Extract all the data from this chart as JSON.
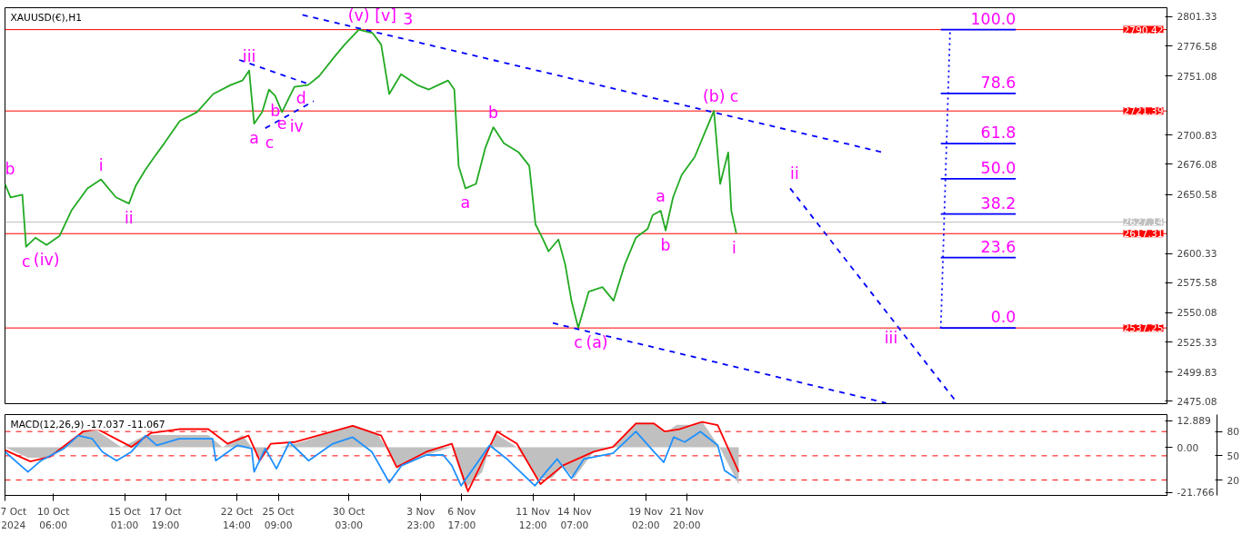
{
  "chart_data": [
    {
      "type": "line",
      "title": "XAUUSD(€),H1",
      "tick_labels": "y",
      "xlim": [
        "2024-10-07T00:00",
        "2024-12-24T03:00"
      ],
      "ylim": [
        2473,
        2809
      ],
      "yticks": [
        2801.33,
        2776.58,
        2751.08,
        2700.83,
        2676.08,
        2650.58,
        2600.33,
        2575.58,
        2550.08,
        2525.33,
        2499.83,
        2475.08
      ],
      "series": [
        {
          "color": "#22aa22",
          "x": [
            "2024-10-07T00:00",
            "2024-10-07T09:00",
            "2024-10-08T04:00",
            "2024-10-08T10:00",
            "2024-10-09T01:00",
            "2024-10-09T19:00",
            "2024-10-10T16:00",
            "2024-10-11T11:00",
            "2024-10-12T13:00",
            "2024-10-13T11:00",
            "2024-10-14T11:00",
            "2024-10-15T08:00",
            "2024-10-15T19:00",
            "2024-10-16T10:00",
            "2024-10-17T01:00",
            "2024-10-17T17:00",
            "2024-10-18T18:00",
            "2024-10-19T22:00",
            "2024-10-21T00:00",
            "2024-10-22T04:00",
            "2024-10-22T23:00",
            "2024-10-23T10:00",
            "2024-10-23T18:00",
            "2024-10-24T07:00",
            "2024-10-24T18:00",
            "2024-10-25T04:00",
            "2024-10-25T15:00",
            "2024-10-26T11:00",
            "2024-10-27T09:00",
            "2024-10-28T03:00",
            "2024-10-29T02:00",
            "2024-10-29T20:00",
            "2024-10-30T19:00",
            "2024-10-31T17:00",
            "2024-11-01T07:00",
            "2024-11-01T20:00",
            "2024-11-02T15:00",
            "2024-11-03T17:00",
            "2024-11-04T12:00",
            "2024-11-05T03:00",
            "2024-11-05T19:00",
            "2024-11-06T05:00",
            "2024-11-06T12:00",
            "2024-11-06T23:00",
            "2024-11-07T16:00",
            "2024-11-08T07:00",
            "2024-11-08T20:00",
            "2024-11-09T13:00",
            "2024-11-10T13:00",
            "2024-11-11T06:00",
            "2024-11-11T16:00",
            "2024-11-12T03:00",
            "2024-11-12T13:00",
            "2024-11-13T05:00",
            "2024-11-13T16:00",
            "2024-11-14T02:00",
            "2024-11-14T13:00",
            "2024-11-15T06:00",
            "2024-11-16T04:00",
            "2024-11-16T22:00",
            "2024-11-17T16:00",
            "2024-11-18T10:00",
            "2024-11-19T05:00",
            "2024-11-19T13:00",
            "2024-11-20T02:00",
            "2024-11-20T10:00",
            "2024-11-20T22:00",
            "2024-11-21T12:00",
            "2024-11-22T09:00",
            "2024-11-23T03:00",
            "2024-11-23T16:00",
            "2024-11-24T02:00",
            "2024-11-24T15:00",
            "2024-11-24T20:00",
            "2024-11-25T04:00"
          ],
          "values": [
            2659.5,
            2648.1,
            2650.4,
            2606.2,
            2613.8,
            2607.7,
            2615.3,
            2636.7,
            2655.7,
            2663.3,
            2648.1,
            2642.8,
            2658.0,
            2671.0,
            2682.4,
            2693.9,
            2712.9,
            2720.5,
            2735.8,
            2743.4,
            2747.2,
            2755.6,
            2710.6,
            2720.5,
            2739.6,
            2734.2,
            2720.5,
            2741.9,
            2743.4,
            2751.0,
            2766.3,
            2777.7,
            2790.4,
            2787.6,
            2777.7,
            2735.8,
            2752.5,
            2743.4,
            2739.6,
            2743.4,
            2747.2,
            2739.6,
            2674.8,
            2655.7,
            2659.5,
            2690.0,
            2707.6,
            2693.9,
            2686.2,
            2674.8,
            2625.2,
            2613.8,
            2602.3,
            2612.3,
            2591.0,
            2560.4,
            2537.3,
            2568.1,
            2571.9,
            2560.4,
            2591.0,
            2613.8,
            2621.4,
            2632.9,
            2636.7,
            2620.0,
            2648.1,
            2667.2,
            2682.4,
            2705.3,
            2721.4,
            2659.5,
            2686.2,
            2636.7,
            2617.6
          ]
        },
        {
          "color": "#0000ff",
          "line_style": "dashed",
          "x": [
            "2024-10-27T00:00",
            "2024-12-05T01:00"
          ],
          "values": [
            2802.9,
            2686.2
          ]
        },
        {
          "color": "#0000ff",
          "line_style": "dashed",
          "x": [
            "2024-11-12T20:00",
            "2024-12-05T06:00"
          ],
          "values": [
            2541.4,
            2473.5
          ]
        },
        {
          "color": "#0000ff",
          "line_style": "dashed",
          "x": [
            "2024-11-28T19:00",
            "2024-12-09T20:00"
          ],
          "values": [
            2655.7,
            2476.6
          ]
        },
        {
          "color": "#0000ff",
          "line_style": "dashed",
          "x": [
            "2024-10-22T18:00",
            "2024-10-27T06:00"
          ],
          "values": [
            2764.7,
            2744.9
          ]
        },
        {
          "color": "#0000ff",
          "line_style": "dashed",
          "x": [
            "2024-10-24T12:00",
            "2024-10-27T18:00"
          ],
          "values": [
            2706.8,
            2729.7
          ]
        },
        {
          "color": "#0000ff",
          "line_style": "dotted",
          "x": [
            "2024-12-08T22:00",
            "2024-12-09T13:00"
          ],
          "values": [
            2537,
            2790
          ]
        },
        {
          "color": "#0000ff",
          "x": [
            "2024-12-08T22:00",
            "2024-12-13T23:00"
          ],
          "values": [
            2790.42,
            2790.42
          ]
        },
        {
          "color": "#0000ff",
          "x": [
            "2024-12-08T22:00",
            "2024-12-13T23:00"
          ],
          "values": [
            2736.2,
            2736.2
          ]
        },
        {
          "color": "#0000ff",
          "x": [
            "2024-12-08T22:00",
            "2024-12-13T23:00"
          ],
          "values": [
            2693.7,
            2693.7
          ]
        },
        {
          "color": "#0000ff",
          "x": [
            "2024-12-08T22:00",
            "2024-12-13T23:00"
          ],
          "values": [
            2663.8,
            2663.8
          ]
        },
        {
          "color": "#0000ff",
          "x": [
            "2024-12-08T22:00",
            "2024-12-13T23:00"
          ],
          "values": [
            2634.0,
            2634.0
          ]
        },
        {
          "color": "#0000ff",
          "x": [
            "2024-12-08T22:00",
            "2024-12-13T23:00"
          ],
          "values": [
            2597.0,
            2597.0
          ]
        },
        {
          "color": "#0000ff",
          "x": [
            "2024-12-08T22:00",
            "2024-12-13T23:00"
          ],
          "values": [
            2537.25,
            2537.25
          ]
        }
      ],
      "ref_lines": [
        {
          "axis": "y",
          "value": 2790.42,
          "label": "2790.42",
          "color": "#ff0000"
        },
        {
          "axis": "y",
          "value": 2721.39,
          "label": "2721.39",
          "color": "#ff0000"
        },
        {
          "axis": "y",
          "value": 2627.14,
          "label": "2627.14",
          "color": "#c0c0c0"
        },
        {
          "axis": "y",
          "value": 2617.31,
          "label": "2617.31",
          "color": "#ff0000"
        },
        {
          "axis": "y",
          "value": 2537.25,
          "label": "2537.25",
          "color": "#ff0000"
        }
      ],
      "annotations": [
        {
          "text": "b",
          "x": "2024-10-07T00:00",
          "y": 2659.5
        },
        {
          "text": "c",
          "x": "2024-10-08T10:00",
          "y": 2606.2
        },
        {
          "text": "(iv)",
          "x": "2024-10-09T19:00",
          "y": 2607.7
        },
        {
          "text": "i",
          "x": "2024-10-13T11:00",
          "y": 2663.3
        },
        {
          "text": "ii",
          "x": "2024-10-15T08:00",
          "y": 2642.8
        },
        {
          "text": "iii",
          "x": "2024-10-23T10:00",
          "y": 2755.6
        },
        {
          "text": "a",
          "x": "2024-10-23T18:00",
          "y": 2710.6
        },
        {
          "text": "b",
          "x": "2024-10-25T04:00",
          "y": 2734.2
        },
        {
          "text": "d",
          "x": "2024-10-27T06:00",
          "y": 2744.9
        },
        {
          "text": "c",
          "x": "2024-10-24T12:00",
          "y": 2706.8
        },
        {
          "text": "e",
          "x": "2024-10-25T15:00",
          "y": 2720.5
        },
        {
          "text": "iv",
          "x": "2024-10-25T15:00",
          "y": 2720.5
        },
        {
          "text": "(v)",
          "x": "2024-10-30T19:00",
          "y": 2790.4
        },
        {
          "text": "[v]",
          "x": "2024-10-30T19:00",
          "y": 2790.4
        },
        {
          "text": "3",
          "x": "2024-10-30T19:00",
          "y": 2790.4
        },
        {
          "text": "b",
          "x": "2024-11-08T20:00",
          "y": 2707.6
        },
        {
          "text": "a",
          "x": "2024-11-06T23:00",
          "y": 2655.7
        },
        {
          "text": "c",
          "x": "2024-11-14T13:00",
          "y": 2537.3
        },
        {
          "text": "(a)",
          "x": "2024-11-14T13:00",
          "y": 2537.3
        },
        {
          "text": "a",
          "x": "2024-11-20T02:00",
          "y": 2636.7
        },
        {
          "text": "b",
          "x": "2024-11-20T10:00",
          "y": 2620.0
        },
        {
          "text": "(b)",
          "x": "2024-11-23T16:00",
          "y": 2721.4
        },
        {
          "text": "c",
          "x": "2024-11-23T16:00",
          "y": 2721.4
        },
        {
          "text": "i",
          "x": "2024-11-25T04:00",
          "y": 2617.6
        },
        {
          "text": "ii",
          "x": "2024-11-28T19:00",
          "y": 2655.7
        },
        {
          "text": "iii",
          "x": "2024-12-06T15:00",
          "y": 2528.6
        },
        {
          "text": "100.0",
          "x": "2024-12-13T23:00",
          "y": 2790.42
        },
        {
          "text": "78.6",
          "x": "2024-12-13T23:00",
          "y": 2736.2
        },
        {
          "text": "61.8",
          "x": "2024-12-13T23:00",
          "y": 2693.7
        },
        {
          "text": "50.0",
          "x": "2024-12-13T23:00",
          "y": 2663.8
        },
        {
          "text": "38.2",
          "x": "2024-12-13T23:00",
          "y": 2634.0
        },
        {
          "text": "23.6",
          "x": "2024-12-13T23:00",
          "y": 2597.0
        },
        {
          "text": "0.0",
          "x": "2024-12-13T23:00",
          "y": 2537.25
        }
      ]
    },
    {
      "type": "line",
      "title": "MACD(12,26,9) -17.037 -11.067",
      "xlim": [
        "2024-10-07T00:00",
        "2024-12-24T03:00"
      ],
      "xticks": [
        {
          "value": "2024-10-07T00:00",
          "label": "7 Oct 2024"
        },
        {
          "value": "2024-10-10T06:00",
          "label": "10 Oct 06:00"
        },
        {
          "value": "2024-10-15T01:00",
          "label": "15 Oct 01:00"
        },
        {
          "value": "2024-10-17T19:00",
          "label": "17 Oct 19:00"
        },
        {
          "value": "2024-10-22T14:00",
          "label": "22 Oct 14:00"
        },
        {
          "value": "2024-10-25T09:00",
          "label": "25 Oct 09:00"
        },
        {
          "value": "2024-10-30T03:00",
          "label": "30 Oct 03:00"
        },
        {
          "value": "2024-11-03T23:00",
          "label": "3 Nov 23:00"
        },
        {
          "value": "2024-11-06T17:00",
          "label": "6 Nov 17:00"
        },
        {
          "value": "2024-11-11T12:00",
          "label": "11 Nov 12:00"
        },
        {
          "value": "2024-11-14T07:00",
          "label": "14 Nov 07:00"
        },
        {
          "value": "2024-11-19T02:00",
          "label": "19 Nov 02:00"
        },
        {
          "value": "2024-11-21T20:00",
          "label": "21 Nov 20:00"
        }
      ],
      "ylim": [
        -23.3,
        15.9
      ],
      "yticks": [
        12.889,
        {
          "value": 0,
          "label": "0.00"
        },
        -21.766
      ],
      "y2lim": [
        1,
        101
      ],
      "y2ticks": [
        80,
        50,
        20
      ],
      "series": [
        {
          "type": "area",
          "color": "#c0c0c0",
          "x": [
            "2024-10-07T00:00",
            "2024-10-08T13:00",
            "2024-10-10T01:00",
            "2024-10-12T06:00",
            "2024-10-13T05:00",
            "2024-10-14T20:00",
            "2024-10-16T11:00",
            "2024-10-17T18:00",
            "2024-10-20T16:00",
            "2024-10-21T15:00",
            "2024-10-22T23:00",
            "2024-10-23T14:00",
            "2024-10-24T03:00",
            "2024-10-24T21:00",
            "2024-10-25T12:00",
            "2024-10-27T03:00",
            "2024-10-30T09:00",
            "2024-11-01T00:00",
            "2024-11-01T15:00",
            "2024-11-02T08:00",
            "2024-11-04T04:00",
            "2024-11-06T01:00",
            "2024-11-06T23:00",
            "2024-11-08T02:00",
            "2024-11-08T22:00",
            "2024-11-10T10:00",
            "2024-11-11T19:00",
            "2024-11-12T18:00",
            "2024-11-13T12:00",
            "2024-11-14T06:00",
            "2024-11-15T14:00",
            "2024-11-16T21:00",
            "2024-11-18T10:00",
            "2024-11-19T15:00",
            "2024-11-20T09:00",
            "2024-11-21T04:00",
            "2024-11-22T06:00",
            "2024-11-22T21:00",
            "2024-11-24T01:00",
            "2024-11-25T08:00"
          ],
          "values": [
            0,
            -5,
            -5,
            8,
            8,
            0,
            6,
            6,
            6,
            0,
            6,
            0,
            -5,
            0,
            0,
            3,
            11,
            7,
            0,
            -10,
            -4,
            0,
            -20,
            -12,
            7,
            0,
            -15,
            -15,
            -9,
            -15,
            -2,
            0,
            12,
            12,
            7,
            11,
            11,
            12.5,
            0,
            -18
          ]
        },
        {
          "color": "#ff0000",
          "axis": "y2",
          "x": [
            "2024-10-07T00:00",
            "2024-10-08T17:00",
            "2024-10-10T01:00",
            "2024-10-12T06:00",
            "2024-10-13T05:00",
            "2024-10-15T12:00",
            "2024-10-16T19:00",
            "2024-10-18T17:00",
            "2024-10-20T16:00",
            "2024-10-21T23:00",
            "2024-10-23T09:00",
            "2024-10-24T03:00",
            "2024-10-24T21:00",
            "2024-10-26T11:00",
            "2024-10-30T09:00",
            "2024-11-01T07:00",
            "2024-11-02T08:00",
            "2024-11-04T08:00",
            "2024-11-06T01:00",
            "2024-11-07T03:00",
            "2024-11-09T02:00",
            "2024-11-10T10:00",
            "2024-11-12T00:00",
            "2024-11-13T12:00",
            "2024-11-15T14:00",
            "2024-11-16T21:00",
            "2024-11-18T10:00",
            "2024-11-19T15:00",
            "2024-11-20T09:00",
            "2024-11-21T08:00",
            "2024-11-22T21:00",
            "2024-11-23T22:00",
            "2024-11-25T08:00"
          ],
          "values": [
            57,
            43,
            49,
            80,
            83,
            61,
            78,
            83,
            83,
            65,
            75,
            44,
            65,
            67,
            87,
            75,
            36,
            55,
            65,
            6,
            80,
            65,
            15,
            38,
            55,
            61,
            90,
            90,
            80,
            83,
            92,
            88,
            30
          ]
        },
        {
          "color": "#1e90ff",
          "axis": "y2",
          "x": [
            "2024-10-07T00:00",
            "2024-10-08T13:00",
            "2024-10-09T10:00",
            "2024-10-10T23:00",
            "2024-10-11T22:00",
            "2024-10-12T21:00",
            "2024-10-13T13:00",
            "2024-10-14T12:00",
            "2024-10-15T12:00",
            "2024-10-16T11:00",
            "2024-10-17T05:00",
            "2024-10-18T17:00",
            "2024-10-20T23:00",
            "2024-10-21T04:00",
            "2024-10-22T15:00",
            "2024-10-23T14:00",
            "2024-10-23T18:00",
            "2024-10-24T12:00",
            "2024-10-25T06:00",
            "2024-10-26T03:00",
            "2024-10-27T10:00",
            "2024-10-29T01:00",
            "2024-10-30T09:00",
            "2024-10-31T16:00",
            "2024-11-01T20:00",
            "2024-11-02T16:00",
            "2024-11-04T08:00",
            "2024-11-05T11:00",
            "2024-11-06T01:00",
            "2024-11-06T16:00",
            "2024-11-08T14:00",
            "2024-11-09T18:00",
            "2024-11-11T15:00",
            "2024-11-12T09:00",
            "2024-11-13T03:00",
            "2024-11-14T02:00",
            "2024-11-14T22:00",
            "2024-11-16T21:00",
            "2024-11-18T10:00",
            "2024-11-19T15:00",
            "2024-11-20T07:00",
            "2024-11-20T23:00",
            "2024-11-21T17:00",
            "2024-11-22T18:00",
            "2024-11-23T22:00",
            "2024-11-24T09:00",
            "2024-11-25T04:00"
          ],
          "values": [
            55,
            30,
            44,
            59,
            75,
            71,
            55,
            44,
            55,
            75,
            63,
            71,
            71,
            44,
            63,
            59,
            30,
            59,
            34,
            67,
            44,
            65,
            73,
            55,
            17,
            38,
            51,
            51,
            38,
            13,
            63,
            46,
            13,
            30,
            46,
            22,
            46,
            53,
            80,
            55,
            42,
            73,
            67,
            80,
            63,
            32,
            22
          ]
        }
      ],
      "ref_lines": [
        {
          "axis": "y2",
          "value": 80,
          "color": "#ff0000",
          "line_style": "dashed"
        },
        {
          "axis": "y2",
          "value": 50,
          "color": "#ff0000",
          "line_style": "dashed"
        },
        {
          "axis": "y2",
          "value": 20,
          "color": "#ff0000",
          "line_style": "dashed"
        }
      ]
    }
  ]
}
